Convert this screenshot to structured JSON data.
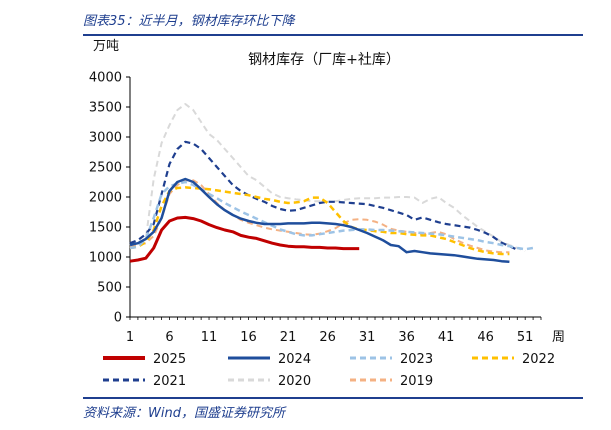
{
  "header": {
    "figure_title": "图表35：近半月，钢材库存环比下降"
  },
  "footer": {
    "source": "资料来源：Wind，国盛证券研究所"
  },
  "chart_data": {
    "type": "line",
    "title": "钢材库存（厂库+社库）",
    "ylabel": "万吨",
    "xlabel": "周",
    "ylim": [
      0,
      4000
    ],
    "xlim": [
      1,
      53
    ],
    "yticks": [
      0,
      500,
      1000,
      1500,
      2000,
      2500,
      3000,
      3500,
      4000
    ],
    "xticks": [
      1,
      6,
      11,
      16,
      21,
      26,
      31,
      36,
      41,
      46,
      51
    ],
    "grid": false,
    "legend_position": "bottom",
    "series": [
      {
        "name": "2019",
        "color": "#f4b183",
        "dash": "dashed",
        "width": 2,
        "x": [
          1,
          2,
          3,
          4,
          5,
          6,
          7,
          8,
          9,
          10,
          11,
          12,
          13,
          14,
          15,
          16,
          17,
          18,
          19,
          20,
          21,
          22,
          23,
          24,
          25,
          26,
          27,
          28,
          29,
          30,
          31,
          32,
          33,
          34,
          35,
          36,
          37,
          38,
          39,
          40,
          41,
          42,
          43,
          44,
          45,
          46,
          47,
          48,
          49
        ],
        "values": [
          1180,
          1200,
          1230,
          1350,
          1650,
          2050,
          2200,
          2280,
          2280,
          2200,
          2050,
          1900,
          1780,
          1700,
          1620,
          1570,
          1530,
          1490,
          1460,
          1440,
          1420,
          1400,
          1380,
          1370,
          1390,
          1430,
          1480,
          1560,
          1620,
          1630,
          1620,
          1590,
          1540,
          1470,
          1440,
          1420,
          1400,
          1380,
          1400,
          1420,
          1380,
          1300,
          1240,
          1190,
          1150,
          1110,
          1090,
          1080,
          1080
        ]
      },
      {
        "name": "2020",
        "color": "#d9d9d9",
        "dash": "dashed",
        "width": 2,
        "x": [
          1,
          2,
          3,
          4,
          5,
          6,
          7,
          8,
          9,
          10,
          11,
          12,
          13,
          14,
          15,
          16,
          17,
          18,
          19,
          20,
          21,
          22,
          23,
          24,
          25,
          26,
          27,
          28,
          29,
          30,
          31,
          32,
          33,
          34,
          35,
          36,
          37,
          38,
          39,
          40,
          41,
          42,
          43,
          44,
          45,
          46,
          47,
          48,
          49,
          50,
          51
        ],
        "values": [
          1200,
          1250,
          1300,
          2300,
          2900,
          3200,
          3450,
          3550,
          3450,
          3250,
          3050,
          2950,
          2800,
          2650,
          2500,
          2350,
          2280,
          2170,
          2060,
          2000,
          1980,
          1960,
          1950,
          1930,
          1930,
          1920,
          1930,
          1950,
          1970,
          1980,
          1980,
          1980,
          1990,
          1990,
          2000,
          2000,
          1990,
          1900,
          1970,
          2000,
          1900,
          1820,
          1700,
          1600,
          1500,
          1420,
          1340,
          1250,
          1200,
          1150,
          1100
        ]
      },
      {
        "name": "2021",
        "color": "#1f3f8f",
        "dash": "dashed",
        "width": 2.2,
        "x": [
          1,
          2,
          3,
          4,
          5,
          6,
          7,
          8,
          9,
          10,
          11,
          12,
          13,
          14,
          15,
          16,
          17,
          18,
          19,
          20,
          21,
          22,
          23,
          24,
          25,
          26,
          27,
          28,
          29,
          30,
          31,
          32,
          33,
          34,
          35,
          36,
          37,
          38,
          39,
          40,
          41,
          42,
          43,
          44,
          45,
          46,
          47,
          48,
          49,
          50
        ],
        "values": [
          1230,
          1280,
          1380,
          1550,
          2050,
          2550,
          2800,
          2920,
          2890,
          2800,
          2650,
          2500,
          2350,
          2200,
          2100,
          2030,
          1970,
          1920,
          1850,
          1800,
          1770,
          1780,
          1820,
          1860,
          1900,
          1920,
          1920,
          1910,
          1900,
          1890,
          1880,
          1850,
          1820,
          1780,
          1740,
          1700,
          1620,
          1660,
          1620,
          1580,
          1550,
          1530,
          1510,
          1490,
          1450,
          1400,
          1330,
          1240,
          1180,
          1120
        ]
      },
      {
        "name": "2022",
        "color": "#ffc000",
        "dash": "dashed",
        "width": 2.5,
        "x": [
          1,
          2,
          3,
          4,
          5,
          6,
          7,
          8,
          9,
          10,
          11,
          12,
          13,
          14,
          15,
          16,
          17,
          18,
          19,
          20,
          21,
          22,
          23,
          24,
          25,
          26,
          27,
          28,
          29,
          30,
          31,
          32,
          33,
          34,
          35,
          36,
          37,
          38,
          39,
          40,
          41,
          42,
          43,
          44,
          45,
          46,
          47,
          48,
          49
        ],
        "values": [
          1150,
          1170,
          1250,
          1450,
          1850,
          2100,
          2150,
          2160,
          2150,
          2140,
          2130,
          2110,
          2090,
          2070,
          2050,
          2030,
          2000,
          1970,
          1950,
          1920,
          1900,
          1910,
          1930,
          1990,
          1990,
          1900,
          1750,
          1600,
          1500,
          1460,
          1450,
          1430,
          1420,
          1400,
          1400,
          1380,
          1370,
          1360,
          1360,
          1330,
          1300,
          1250,
          1200,
          1150,
          1110,
          1080,
          1060,
          1050,
          1050
        ]
      },
      {
        "name": "2023",
        "color": "#9dc3e6",
        "dash": "dashed",
        "width": 2.5,
        "x": [
          1,
          2,
          3,
          4,
          5,
          6,
          7,
          8,
          9,
          10,
          11,
          12,
          13,
          14,
          15,
          16,
          17,
          18,
          19,
          20,
          21,
          22,
          23,
          24,
          25,
          26,
          27,
          28,
          29,
          30,
          31,
          32,
          33,
          34,
          35,
          36,
          37,
          38,
          39,
          40,
          41,
          42,
          43,
          44,
          45,
          46,
          47,
          48,
          49,
          50,
          51,
          52
        ],
        "values": [
          1150,
          1170,
          1300,
          1650,
          2050,
          2180,
          2220,
          2250,
          2200,
          2130,
          2050,
          1980,
          1900,
          1830,
          1760,
          1700,
          1640,
          1580,
          1520,
          1460,
          1420,
          1380,
          1360,
          1360,
          1380,
          1400,
          1420,
          1440,
          1450,
          1460,
          1460,
          1450,
          1450,
          1440,
          1430,
          1420,
          1410,
          1400,
          1390,
          1380,
          1360,
          1340,
          1320,
          1300,
          1280,
          1250,
          1230,
          1200,
          1180,
          1150,
          1130,
          1150
        ]
      },
      {
        "name": "2024",
        "color": "#1f4e9c",
        "dash": "solid",
        "width": 2.5,
        "x": [
          1,
          2,
          3,
          4,
          5,
          6,
          7,
          8,
          9,
          10,
          11,
          12,
          13,
          14,
          15,
          16,
          17,
          18,
          19,
          20,
          21,
          22,
          23,
          24,
          25,
          26,
          27,
          28,
          29,
          30,
          31,
          32,
          33,
          34,
          35,
          36,
          37,
          38,
          39,
          40,
          41,
          42,
          43,
          44,
          45,
          46,
          47,
          48,
          49
        ],
        "values": [
          1200,
          1230,
          1300,
          1420,
          1650,
          2100,
          2250,
          2300,
          2250,
          2130,
          2000,
          1880,
          1780,
          1700,
          1640,
          1600,
          1570,
          1550,
          1550,
          1550,
          1560,
          1560,
          1560,
          1570,
          1570,
          1560,
          1550,
          1530,
          1500,
          1450,
          1400,
          1340,
          1280,
          1200,
          1180,
          1080,
          1100,
          1080,
          1060,
          1050,
          1040,
          1030,
          1010,
          990,
          970,
          960,
          950,
          930,
          920
        ]
      },
      {
        "name": "2025",
        "color": "#c00000",
        "dash": "solid",
        "width": 3,
        "x": [
          1,
          2,
          3,
          4,
          5,
          6,
          7,
          8,
          9,
          10,
          11,
          12,
          13,
          14,
          15,
          16,
          17,
          18,
          19,
          20,
          21,
          22,
          23,
          24,
          25,
          26,
          27,
          28,
          29,
          30
        ],
        "values": [
          930,
          950,
          980,
          1150,
          1450,
          1600,
          1650,
          1660,
          1640,
          1600,
          1540,
          1490,
          1450,
          1420,
          1360,
          1330,
          1310,
          1270,
          1230,
          1200,
          1180,
          1170,
          1170,
          1160,
          1160,
          1150,
          1150,
          1140,
          1140,
          1140
        ]
      }
    ]
  }
}
